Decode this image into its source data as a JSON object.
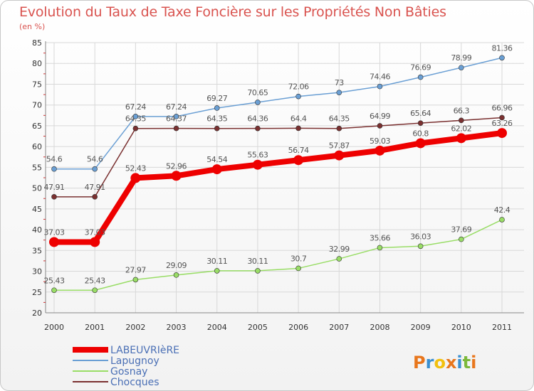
{
  "chart_data": {
    "type": "line",
    "title": "Evolution du Taux de Taxe Foncière sur les Propriétés Non Bâties",
    "subtitle": "(en %)",
    "xlabel": "",
    "ylabel": "",
    "ylim": [
      20,
      85
    ],
    "yticks": [
      20,
      25,
      30,
      35,
      40,
      45,
      50,
      55,
      60,
      65,
      70,
      75,
      80,
      85
    ],
    "categories": [
      "2000",
      "2001",
      "2002",
      "2003",
      "2004",
      "2005",
      "2006",
      "2007",
      "2008",
      "2009",
      "2010",
      "2011"
    ],
    "series": [
      {
        "name": "LABEUVRIèRE",
        "color": "#ee0000",
        "values": [
          37.03,
          37.03,
          52.43,
          52.96,
          54.54,
          55.63,
          56.74,
          57.87,
          59.03,
          60.8,
          62.02,
          63.26
        ],
        "labels": [
          "37.03",
          "37.03",
          "52.43",
          "52.96",
          "54.54",
          "55.63",
          "56.74",
          "57.87",
          "59.03",
          "60.8",
          "62.02",
          "63.26"
        ]
      },
      {
        "name": "Lapugnoy",
        "color": "#6a9fd4",
        "values": [
          54.6,
          54.6,
          67.24,
          67.24,
          69.27,
          70.65,
          72.06,
          73,
          74.46,
          76.69,
          78.99,
          81.36
        ],
        "labels": [
          "54.6",
          "54.6",
          "67.24",
          "67.24",
          "69.27",
          "70.65",
          "72.06",
          "73",
          "74.46",
          "76.69",
          "78.99",
          "81.36"
        ]
      },
      {
        "name": "Gosnay",
        "color": "#99dd66",
        "values": [
          25.43,
          25.43,
          27.97,
          29.09,
          30.11,
          30.11,
          30.7,
          32.99,
          35.66,
          36.03,
          37.69,
          42.4
        ],
        "labels": [
          "25.43",
          "25.43",
          "27.97",
          "29.09",
          "30.11",
          "30.11",
          "30.7",
          "32.99",
          "35.66",
          "36.03",
          "37.69",
          "42.4"
        ]
      },
      {
        "name": "Chocques",
        "color": "#7a3030",
        "values": [
          47.91,
          47.91,
          64.35,
          64.37,
          64.35,
          64.36,
          64.4,
          64.35,
          64.99,
          65.64,
          66.3,
          66.96
        ],
        "labels": [
          "47.91",
          "47.91",
          "64.35",
          "64.37",
          "64.35",
          "64.36",
          "64.4",
          "64.35",
          "64.99",
          "65.64",
          "66.3",
          "66.96"
        ]
      }
    ],
    "legend": [
      "LABEUVRIèRE",
      "Lapugnoy",
      "Gosnay",
      "Chocques"
    ],
    "legend_position": "bottom-left",
    "grid": true
  },
  "branding": {
    "logo_text": "Proxiti",
    "logo_colors": [
      "#e8761c",
      "#3a8fd0",
      "#f2c00e",
      "#e8761c",
      "#3a8fd0",
      "#7bb83a",
      "#e8761c"
    ]
  }
}
